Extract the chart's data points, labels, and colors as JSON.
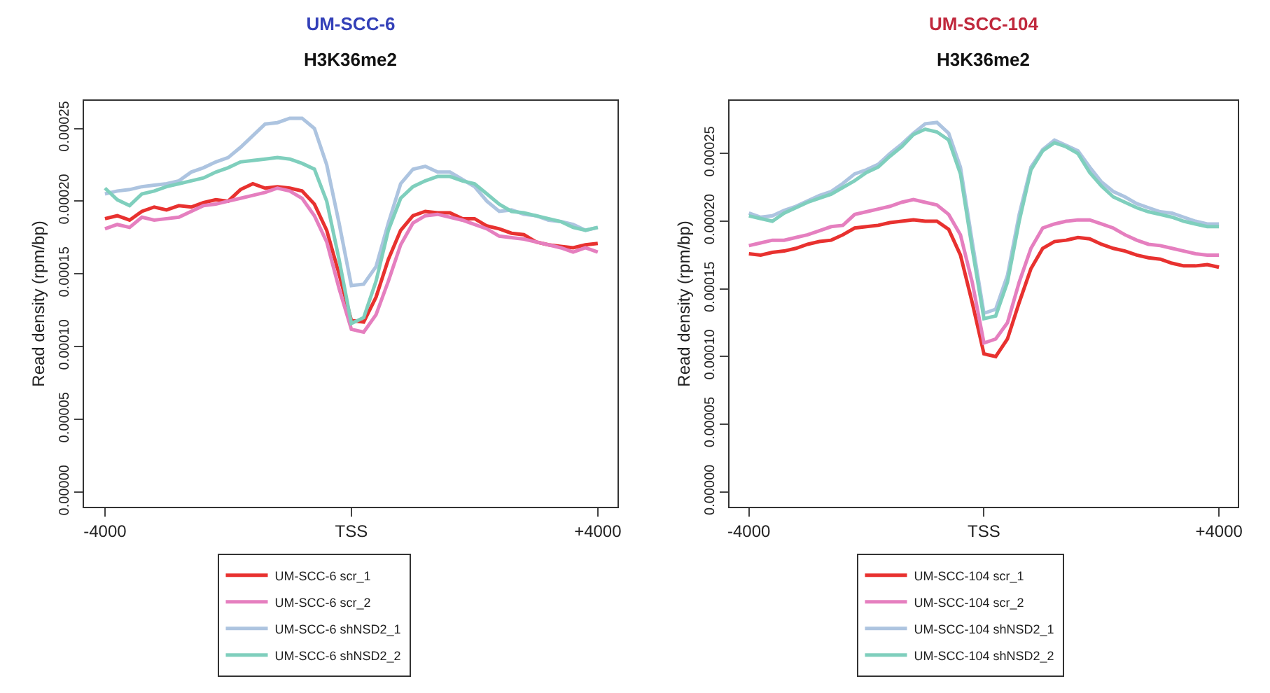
{
  "chart_data": [
    {
      "type": "line",
      "title": "UM-SCC-6",
      "subtitle": "H3K36me2",
      "ylabel": "Read density (rpm/bp)",
      "x": [
        -4000,
        -3800,
        -3600,
        -3400,
        -3200,
        -3000,
        -2800,
        -2600,
        -2400,
        -2200,
        -2000,
        -1800,
        -1600,
        -1400,
        -1200,
        -1000,
        -800,
        -600,
        -400,
        -200,
        0,
        200,
        400,
        600,
        800,
        1000,
        1200,
        1400,
        1600,
        1800,
        2000,
        2200,
        2400,
        2600,
        2800,
        3000,
        3200,
        3400,
        3600,
        3800,
        4000
      ],
      "xlim": [
        -4340,
        4320
      ],
      "xticks": [
        {
          "value": -4000,
          "label": "-4000"
        },
        {
          "value": 0,
          "label": "TSS"
        },
        {
          "value": 4000,
          "label": "+4000"
        }
      ],
      "ylim": [
        -1e-05,
        0.000269
      ],
      "yticks": [
        {
          "value": 0,
          "label": "0.00000"
        },
        {
          "value": 5e-05,
          "label": "0.00005"
        },
        {
          "value": 0.0001,
          "label": "0.00010"
        },
        {
          "value": 0.00015,
          "label": "0.00015"
        },
        {
          "value": 0.0002,
          "label": "0.00020"
        },
        {
          "value": 0.00025,
          "label": "0.00025"
        }
      ],
      "grid": false,
      "legend": "bottom",
      "marker": "none",
      "line_style": "solid",
      "series": [
        {
          "name": "UM-SCC-6 scr_1",
          "color": "#e8312f",
          "values": [
            0.000188,
            0.00019,
            0.000187,
            0.000193,
            0.000196,
            0.000194,
            0.000197,
            0.000196,
            0.000199,
            0.000201,
            0.0002,
            0.000208,
            0.000212,
            0.000209,
            0.00021,
            0.000209,
            0.000207,
            0.000198,
            0.00018,
            0.00015,
            0.000118,
            0.000117,
            0.000134,
            0.00016,
            0.00018,
            0.00019,
            0.000193,
            0.000192,
            0.000192,
            0.000188,
            0.000188,
            0.000183,
            0.000181,
            0.000178,
            0.000177,
            0.000172,
            0.00017,
            0.000169,
            0.000168,
            0.00017,
            0.000171
          ]
        },
        {
          "name": "UM-SCC-6 scr_2",
          "color": "#e57fbf",
          "values": [
            0.000181,
            0.000184,
            0.000182,
            0.000189,
            0.000187,
            0.000188,
            0.000189,
            0.000193,
            0.000197,
            0.000198,
            0.0002,
            0.000202,
            0.000204,
            0.000206,
            0.000209,
            0.000207,
            0.000202,
            0.00019,
            0.000172,
            0.00014,
            0.000112,
            0.00011,
            0.000122,
            0.000145,
            0.00017,
            0.000185,
            0.00019,
            0.000191,
            0.000189,
            0.000187,
            0.000184,
            0.000181,
            0.000176,
            0.000175,
            0.000174,
            0.000172,
            0.00017,
            0.000168,
            0.000165,
            0.000168,
            0.000165
          ]
        },
        {
          "name": "UM-SCC-6 shNSD2_1",
          "color": "#adc4e0",
          "values": [
            0.000205,
            0.000207,
            0.000208,
            0.00021,
            0.000211,
            0.000212,
            0.000214,
            0.00022,
            0.000223,
            0.000227,
            0.00023,
            0.000237,
            0.000245,
            0.000253,
            0.000254,
            0.000257,
            0.000257,
            0.00025,
            0.000225,
            0.000185,
            0.000142,
            0.000143,
            0.000155,
            0.000185,
            0.000212,
            0.000222,
            0.000224,
            0.00022,
            0.00022,
            0.000215,
            0.00021,
            0.0002,
            0.000193,
            0.000194,
            0.000191,
            0.00019,
            0.000187,
            0.000186,
            0.000184,
            0.00018,
            0.000182
          ]
        },
        {
          "name": "UM-SCC-6 shNSD2_2",
          "color": "#7fcfbd",
          "values": [
            0.000209,
            0.000201,
            0.000197,
            0.000205,
            0.000207,
            0.00021,
            0.000212,
            0.000214,
            0.000216,
            0.00022,
            0.000223,
            0.000227,
            0.000228,
            0.000229,
            0.00023,
            0.000229,
            0.000226,
            0.000222,
            0.0002,
            0.00016,
            0.000116,
            0.00012,
            0.000145,
            0.00018,
            0.000202,
            0.00021,
            0.000214,
            0.000217,
            0.000217,
            0.000214,
            0.000212,
            0.000205,
            0.000198,
            0.000193,
            0.000192,
            0.00019,
            0.000188,
            0.000186,
            0.000182,
            0.00018,
            0.000182
          ]
        }
      ]
    },
    {
      "type": "line",
      "title": "UM-SCC-104",
      "subtitle": "H3K36me2",
      "ylabel": "Read density (rpm/bp)",
      "x": [
        -4000,
        -3800,
        -3600,
        -3400,
        -3200,
        -3000,
        -2800,
        -2600,
        -2400,
        -2200,
        -2000,
        -1800,
        -1600,
        -1400,
        -1200,
        -1000,
        -800,
        -600,
        -400,
        -200,
        0,
        200,
        400,
        600,
        800,
        1000,
        1200,
        1400,
        1600,
        1800,
        2000,
        2200,
        2400,
        2600,
        2800,
        3000,
        3200,
        3400,
        3600,
        3800,
        4000
      ],
      "xlim": [
        -4330,
        4320
      ],
      "xticks": [
        {
          "value": -4000,
          "label": "-4000"
        },
        {
          "value": 0,
          "label": "TSS"
        },
        {
          "value": 4000,
          "label": "+4000"
        }
      ],
      "ylim": [
        -1.1e-05,
        0.000289
      ],
      "yticks": [
        {
          "value": 0,
          "label": "0.00000"
        },
        {
          "value": 5e-05,
          "label": "0.00005"
        },
        {
          "value": 0.0001,
          "label": "0.00010"
        },
        {
          "value": 0.00015,
          "label": "0.00015"
        },
        {
          "value": 0.0002,
          "label": "0.00020"
        },
        {
          "value": 0.00025,
          "label": "0.00025"
        }
      ],
      "grid": false,
      "legend": "bottom",
      "marker": "none",
      "line_style": "solid",
      "series": [
        {
          "name": "UM-SCC-104 scr_1",
          "color": "#e8312f",
          "values": [
            0.000176,
            0.000175,
            0.000177,
            0.000178,
            0.00018,
            0.000183,
            0.000185,
            0.000186,
            0.00019,
            0.000195,
            0.000196,
            0.000197,
            0.000199,
            0.0002,
            0.000201,
            0.0002,
            0.0002,
            0.000194,
            0.000175,
            0.00014,
            0.000102,
            0.0001,
            0.000113,
            0.00014,
            0.000165,
            0.00018,
            0.000185,
            0.000186,
            0.000188,
            0.000187,
            0.000183,
            0.00018,
            0.000178,
            0.000175,
            0.000173,
            0.000172,
            0.000169,
            0.000167,
            0.000167,
            0.000168,
            0.000166
          ]
        },
        {
          "name": "UM-SCC-104 scr_2",
          "color": "#e57fbf",
          "values": [
            0.000182,
            0.000184,
            0.000186,
            0.000186,
            0.000188,
            0.00019,
            0.000193,
            0.000196,
            0.000197,
            0.000205,
            0.000207,
            0.000209,
            0.000211,
            0.000214,
            0.000216,
            0.000214,
            0.000212,
            0.000205,
            0.00019,
            0.000155,
            0.00011,
            0.000113,
            0.000125,
            0.000155,
            0.00018,
            0.000195,
            0.000198,
            0.0002,
            0.000201,
            0.000201,
            0.000198,
            0.000195,
            0.00019,
            0.000186,
            0.000183,
            0.000182,
            0.00018,
            0.000178,
            0.000176,
            0.000175,
            0.000175
          ]
        },
        {
          "name": "UM-SCC-104 shNSD2_1",
          "color": "#adc4e0",
          "values": [
            0.000206,
            0.000203,
            0.000204,
            0.000208,
            0.000211,
            0.000215,
            0.000219,
            0.000222,
            0.000228,
            0.000235,
            0.000238,
            0.000242,
            0.00025,
            0.000257,
            0.000265,
            0.000272,
            0.000273,
            0.000265,
            0.00024,
            0.000185,
            0.000132,
            0.000135,
            0.00016,
            0.000205,
            0.00024,
            0.000253,
            0.00026,
            0.000256,
            0.000252,
            0.00024,
            0.000229,
            0.000222,
            0.000218,
            0.000213,
            0.00021,
            0.000207,
            0.000206,
            0.000203,
            0.0002,
            0.000198,
            0.000198
          ]
        },
        {
          "name": "UM-SCC-104 shNSD2_2",
          "color": "#7fcfbd",
          "values": [
            0.000204,
            0.000202,
            0.0002,
            0.000206,
            0.00021,
            0.000214,
            0.000217,
            0.00022,
            0.000225,
            0.00023,
            0.000236,
            0.00024,
            0.000248,
            0.000255,
            0.000264,
            0.000268,
            0.000266,
            0.00026,
            0.000235,
            0.00018,
            0.000128,
            0.00013,
            0.000155,
            0.0002,
            0.000238,
            0.000252,
            0.000258,
            0.000255,
            0.00025,
            0.000236,
            0.000226,
            0.000218,
            0.000214,
            0.00021,
            0.000207,
            0.000205,
            0.000203,
            0.0002,
            0.000198,
            0.000196,
            0.000196
          ]
        }
      ]
    }
  ]
}
